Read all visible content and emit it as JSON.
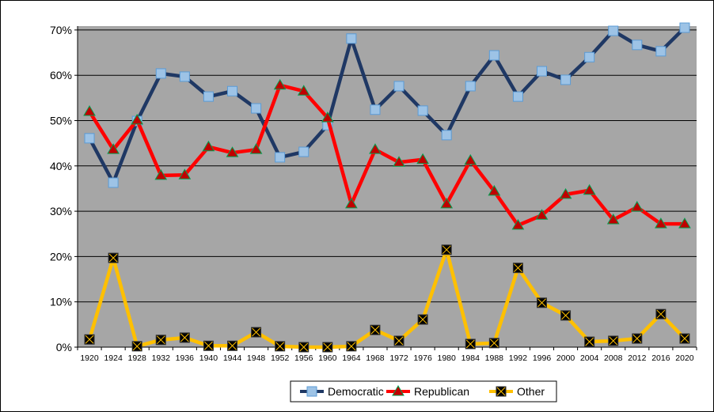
{
  "chart_data": {
    "type": "line",
    "title": "",
    "xlabel": "",
    "ylabel": "",
    "ylim": [
      0,
      70
    ],
    "yticks": [
      "0%",
      "10%",
      "20%",
      "30%",
      "40%",
      "50%",
      "60%",
      "70%"
    ],
    "grid": true,
    "legend": "bottom",
    "categories": [
      "1920",
      "1924",
      "1928",
      "1932",
      "1936",
      "1940",
      "1944",
      "1948",
      "1952",
      "1956",
      "1960",
      "1964",
      "1968",
      "1972",
      "1976",
      "1980",
      "1984",
      "1988",
      "1992",
      "1996",
      "2000",
      "2004",
      "2008",
      "2012",
      "2016",
      "2020"
    ],
    "series": [
      {
        "name": "Democratic",
        "color": "#1f3864",
        "marker": "square",
        "marker_color": "#9dc3e6",
        "values": [
          46.1,
          36.3,
          49.9,
          60.4,
          59.7,
          55.3,
          56.5,
          52.7,
          41.9,
          43.1,
          49.0,
          68.1,
          52.4,
          57.6,
          52.2,
          46.8,
          57.6,
          64.4,
          55.3,
          60.9,
          59.0,
          64.0,
          69.8,
          66.7,
          65.3,
          70.5
        ]
      },
      {
        "name": "Republican",
        "color": "#ff0000",
        "marker": "triangle",
        "marker_color": "#c00000",
        "values": [
          52.0,
          43.6,
          50.1,
          37.9,
          38.0,
          44.2,
          42.9,
          43.6,
          57.8,
          56.5,
          50.6,
          31.6,
          43.6,
          40.8,
          41.4,
          31.6,
          41.2,
          34.4,
          26.9,
          29.1,
          33.7,
          34.6,
          28.1,
          30.9,
          27.2,
          27.2
        ]
      },
      {
        "name": "Other",
        "color": "#ffc000",
        "marker": "x-square",
        "marker_color": "#000000",
        "values": [
          1.7,
          19.7,
          0.2,
          1.6,
          2.1,
          0.3,
          0.3,
          3.3,
          0.2,
          0.0,
          0.0,
          0.2,
          3.8,
          1.4,
          6.1,
          21.5,
          0.7,
          0.9,
          17.5,
          9.8,
          7.0,
          1.2,
          1.4,
          1.9,
          7.3,
          1.9
        ]
      }
    ],
    "plot_background": "#a6a6a6"
  }
}
